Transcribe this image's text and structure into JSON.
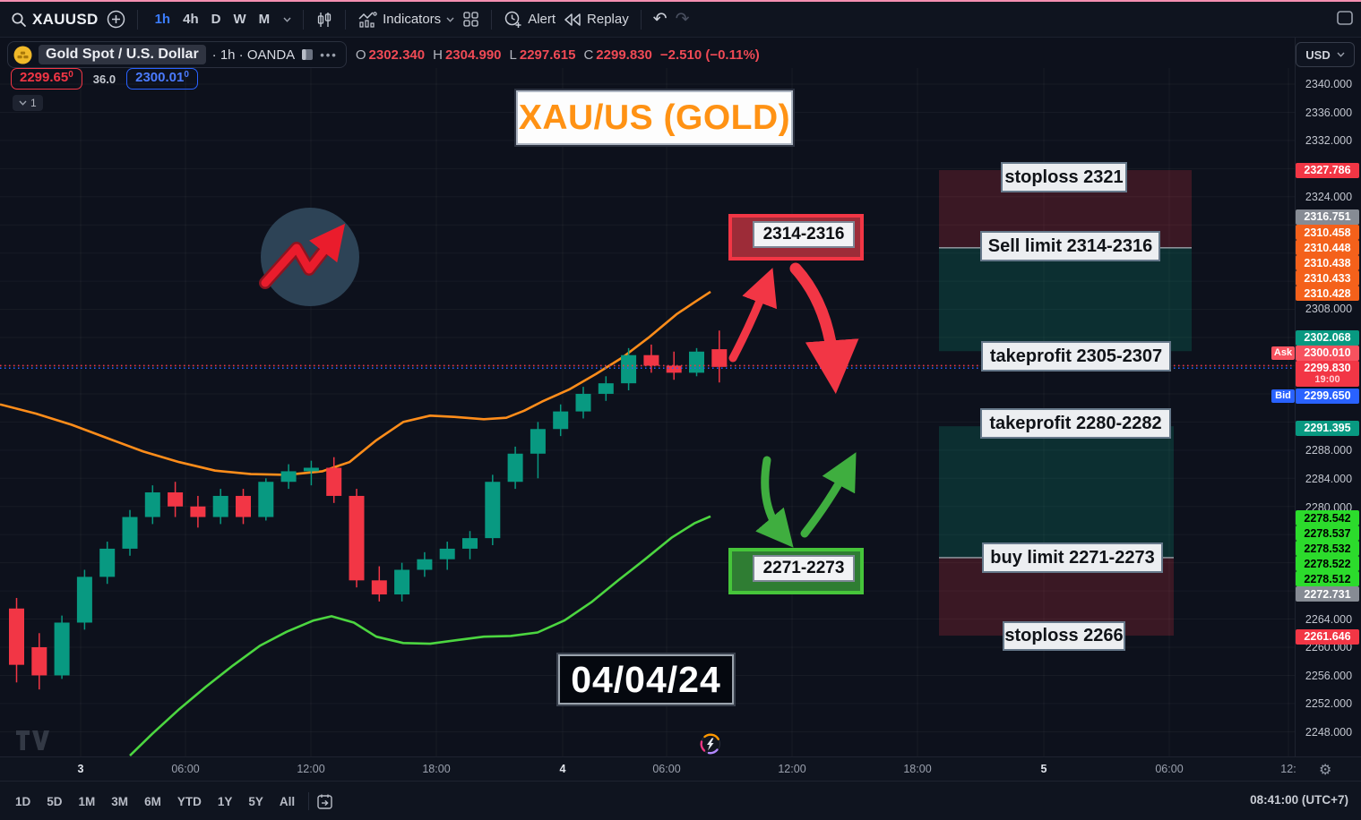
{
  "top_toolbar": {
    "symbol_search": "XAUUSD",
    "timeframes": [
      {
        "label": "1h",
        "active": true
      },
      {
        "label": "4h",
        "active": false
      },
      {
        "label": "D",
        "active": false
      },
      {
        "label": "W",
        "active": false
      },
      {
        "label": "M",
        "active": false
      }
    ],
    "indicators_label": "Indicators",
    "alert_label": "Alert",
    "replay_label": "Replay",
    "undo_glyph": "↶",
    "redo_glyph": "↷"
  },
  "symbol_bar": {
    "name": "Gold Spot / U.S. Dollar",
    "interval_exchange": "· 1h · OANDA",
    "more_glyph": "•••",
    "ohlc": [
      {
        "k": "O",
        "v": "2302.340"
      },
      {
        "k": "H",
        "v": "2304.990"
      },
      {
        "k": "L",
        "v": "2297.615"
      },
      {
        "k": "C",
        "v": "2299.830"
      }
    ],
    "change": "−2.510 (−0.11%)",
    "currency": "USD"
  },
  "quote": {
    "bid": "2299.65",
    "bid_sup": "0",
    "spread": "36.0",
    "ask": "2300.01",
    "ask_sup": "0",
    "indicator_count": "1",
    "countdown": "19:00"
  },
  "annotations": {
    "title": "XAU/US (GOLD)",
    "date": "04/04/24",
    "sell_entry_box": "2314-2316",
    "buy_entry_box": "2271-2273"
  },
  "setup_labels": [
    {
      "text": "stoploss 2321"
    },
    {
      "text": "Sell limit 2314-2316"
    },
    {
      "text": "takeprofit 2305-2307"
    },
    {
      "text": "takeprofit 2280-2282"
    },
    {
      "text": "buy limit 2271-2273"
    },
    {
      "text": "stoploss 2266"
    }
  ],
  "price_axis": {
    "entries": [
      {
        "label": "2340.000",
        "type": "plain"
      },
      {
        "label": "2336.000",
        "type": "plain"
      },
      {
        "label": "2332.000",
        "type": "plain"
      },
      {
        "label": "2327.786",
        "type": "red"
      },
      {
        "label": "2324.000",
        "type": "plain"
      },
      {
        "label": "2316.751",
        "type": "gray"
      },
      {
        "label": "2310.458",
        "type": "orange"
      },
      {
        "label": "2310.448",
        "type": "orange"
      },
      {
        "label": "2310.438",
        "type": "orange"
      },
      {
        "label": "2310.433",
        "type": "orange"
      },
      {
        "label": "2310.428",
        "type": "orange"
      },
      {
        "label": "2308.000",
        "type": "plain"
      },
      {
        "label": "2302.068",
        "type": "green"
      },
      {
        "label": "2300.010",
        "type": "ask"
      },
      {
        "label": "2299.830",
        "type": "current"
      },
      {
        "label": "2299.650",
        "type": "bid"
      },
      {
        "label": "2291.395",
        "type": "green"
      },
      {
        "label": "2288.000",
        "type": "plain"
      },
      {
        "label": "2284.000",
        "type": "plain"
      },
      {
        "label": "2280.000",
        "type": "plain"
      },
      {
        "label": "2278.542",
        "type": "bgreen"
      },
      {
        "label": "2278.537",
        "type": "bgreen"
      },
      {
        "label": "2278.532",
        "type": "bgreen"
      },
      {
        "label": "2278.522",
        "type": "bgreen"
      },
      {
        "label": "2278.512",
        "type": "bgreen"
      },
      {
        "label": "2272.731",
        "type": "gray"
      },
      {
        "label": "2264.000",
        "type": "plain"
      },
      {
        "label": "2261.646",
        "type": "red"
      },
      {
        "label": "2260.000",
        "type": "plain"
      },
      {
        "label": "2256.000",
        "type": "plain"
      },
      {
        "label": "2252.000",
        "type": "plain"
      },
      {
        "label": "2248.000",
        "type": "plain"
      }
    ],
    "ask_tag": "Ask",
    "bid_tag": "Bid"
  },
  "time_axis": [
    {
      "label": "3",
      "day": true
    },
    {
      "label": "06:00",
      "day": false
    },
    {
      "label": "12:00",
      "day": false
    },
    {
      "label": "18:00",
      "day": false
    },
    {
      "label": "4",
      "day": true
    },
    {
      "label": "06:00",
      "day": false
    },
    {
      "label": "12:00",
      "day": false
    },
    {
      "label": "18:00",
      "day": false
    },
    {
      "label": "5",
      "day": true
    },
    {
      "label": "06:00",
      "day": false
    },
    {
      "label": "12:",
      "day": false
    }
  ],
  "bottom_toolbar": {
    "ranges": [
      "1D",
      "5D",
      "1M",
      "3M",
      "6M",
      "YTD",
      "1Y",
      "5Y",
      "All"
    ],
    "clock": "08:41:00 (UTC+7)"
  },
  "chart_data": {
    "type": "candlestick",
    "symbol": "XAUUSD",
    "name": "Gold Spot / U.S. Dollar",
    "interval": "1h",
    "exchange": "OANDA",
    "visible_price_range": [
      2244,
      2342
    ],
    "current_bar": {
      "open": 2302.34,
      "high": 2304.99,
      "low": 2297.615,
      "close": 2299.83,
      "change": -2.51,
      "change_pct": -0.11
    },
    "price_lines": {
      "ask": 2300.01,
      "bid": 2299.65,
      "last": 2299.83
    },
    "candles": [
      [
        2265.5,
        2267.0,
        2255.0,
        2257.5
      ],
      [
        2260.0,
        2262.0,
        2254.0,
        2256.0
      ],
      [
        2256.0,
        2264.5,
        2255.5,
        2263.5
      ],
      [
        2263.5,
        2271.0,
        2262.5,
        2270.0
      ],
      [
        2270.0,
        2275.0,
        2269.0,
        2274.0
      ],
      [
        2274.0,
        2279.5,
        2273.0,
        2278.5
      ],
      [
        2278.5,
        2283.0,
        2277.5,
        2282.0
      ],
      [
        2282.0,
        2283.5,
        2278.5,
        2280.0
      ],
      [
        2280.0,
        2281.5,
        2277.0,
        2278.5
      ],
      [
        2278.5,
        2282.5,
        2277.5,
        2281.5
      ],
      [
        2281.5,
        2282.5,
        2277.5,
        2278.5
      ],
      [
        2278.5,
        2284.0,
        2278.0,
        2283.5
      ],
      [
        2283.5,
        2286.0,
        2282.5,
        2285.0
      ],
      [
        2285.0,
        2286.5,
        2283.0,
        2285.5
      ],
      [
        2285.5,
        2287.0,
        2280.5,
        2281.5
      ],
      [
        2281.5,
        2282.5,
        2268.5,
        2269.5
      ],
      [
        2269.5,
        2271.5,
        2266.5,
        2267.5
      ],
      [
        2267.5,
        2272.0,
        2266.5,
        2271.0
      ],
      [
        2271.0,
        2273.5,
        2270.0,
        2272.5
      ],
      [
        2272.5,
        2275.0,
        2271.0,
        2274.0
      ],
      [
        2274.0,
        2276.5,
        2272.5,
        2275.5
      ],
      [
        2275.5,
        2284.5,
        2274.5,
        2283.5
      ],
      [
        2283.5,
        2288.5,
        2282.5,
        2287.5
      ],
      [
        2287.5,
        2292.0,
        2284.0,
        2291.0
      ],
      [
        2291.0,
        2294.5,
        2290.0,
        2293.5
      ],
      [
        2293.5,
        2297.0,
        2292.5,
        2296.0
      ],
      [
        2296.0,
        2298.5,
        2295.0,
        2297.5
      ],
      [
        2297.5,
        2302.5,
        2296.5,
        2301.5
      ],
      [
        2301.5,
        2303.0,
        2299.0,
        2300.0
      ],
      [
        2300.0,
        2302.0,
        2298.0,
        2299.0
      ],
      [
        2299.0,
        2302.5,
        2298.5,
        2302.0
      ],
      [
        2302.34,
        2304.99,
        2297.615,
        2299.83
      ]
    ],
    "upper_band": [
      [
        0,
        2294.5
      ],
      [
        40,
        2293.2
      ],
      [
        80,
        2291.6
      ],
      [
        120,
        2289.7
      ],
      [
        160,
        2287.8
      ],
      [
        200,
        2286.3
      ],
      [
        240,
        2285.1
      ],
      [
        280,
        2284.6
      ],
      [
        320,
        2284.5
      ],
      [
        360,
        2285.0
      ],
      [
        390,
        2286.3
      ],
      [
        420,
        2289.4
      ],
      [
        450,
        2292.0
      ],
      [
        480,
        2292.9
      ],
      [
        510,
        2292.7
      ],
      [
        540,
        2292.4
      ],
      [
        565,
        2292.6
      ],
      [
        585,
        2293.6
      ],
      [
        605,
        2294.9
      ],
      [
        635,
        2296.6
      ],
      [
        665,
        2298.8
      ],
      [
        695,
        2301.2
      ],
      [
        725,
        2304.1
      ],
      [
        755,
        2307.3
      ],
      [
        775,
        2309.0
      ],
      [
        793,
        2310.5
      ]
    ],
    "lower_band": [
      [
        145,
        2244.6
      ],
      [
        170,
        2247.7
      ],
      [
        200,
        2251.2
      ],
      [
        230,
        2254.4
      ],
      [
        260,
        2257.4
      ],
      [
        290,
        2260.2
      ],
      [
        320,
        2262.2
      ],
      [
        350,
        2263.8
      ],
      [
        370,
        2264.4
      ],
      [
        395,
        2263.5
      ],
      [
        420,
        2261.5
      ],
      [
        450,
        2260.6
      ],
      [
        480,
        2260.5
      ],
      [
        510,
        2261.0
      ],
      [
        540,
        2261.5
      ],
      [
        570,
        2261.6
      ],
      [
        600,
        2262.1
      ],
      [
        630,
        2263.8
      ],
      [
        660,
        2266.4
      ],
      [
        690,
        2269.5
      ],
      [
        720,
        2272.5
      ],
      [
        750,
        2275.6
      ],
      [
        775,
        2277.6
      ],
      [
        793,
        2278.6
      ]
    ],
    "trade_setups": [
      {
        "side": "sell",
        "entry": [
          2314,
          2316
        ],
        "stoploss": 2321,
        "takeprofit": [
          2305,
          2307
        ],
        "zone": {
          "stop_top": 2327.786,
          "entry_level": 2316.751,
          "target_level": 2302.068
        }
      },
      {
        "side": "buy",
        "entry": [
          2271,
          2273
        ],
        "stoploss": 2266,
        "takeprofit": [
          2280,
          2282
        ],
        "zone": {
          "target_level": 2291.395,
          "entry_level": 2272.731,
          "stop_bottom": 2261.646
        }
      }
    ],
    "colors": {
      "candle_up": "#089981",
      "candle_down": "#f23645",
      "upper_band": "#ff8d1a",
      "lower_band": "#4cd640",
      "zone_red": "rgba(242,54,69,0.20)",
      "zone_green": "rgba(8,153,129,0.22)",
      "ask_line": "#f23645",
      "bid_line": "#2962ff"
    }
  }
}
